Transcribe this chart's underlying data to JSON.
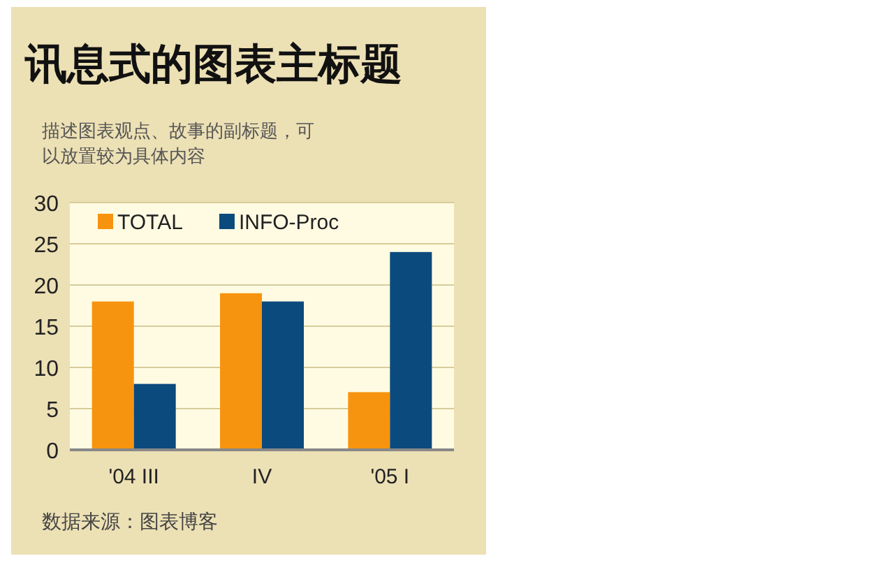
{
  "chart_data": {
    "type": "bar",
    "title": "讯息式的图表主标题",
    "subtitle": "描述图表观点、故事的副标题，可以放置较为具体内容",
    "categories": [
      "'04 III",
      "IV",
      "'05 I"
    ],
    "series": [
      {
        "name": "TOTAL",
        "color": "#f7940f",
        "values": [
          18,
          19,
          7
        ]
      },
      {
        "name": "INFO-Proc",
        "color": "#0b4a7d",
        "values": [
          8,
          18,
          24
        ]
      }
    ],
    "ylim": [
      0,
      30
    ],
    "yticks": [
      0,
      5,
      10,
      15,
      20,
      25,
      30
    ],
    "grid": "y",
    "legend": "top left",
    "annotations": [
      "数据来源：图表博客"
    ]
  }
}
